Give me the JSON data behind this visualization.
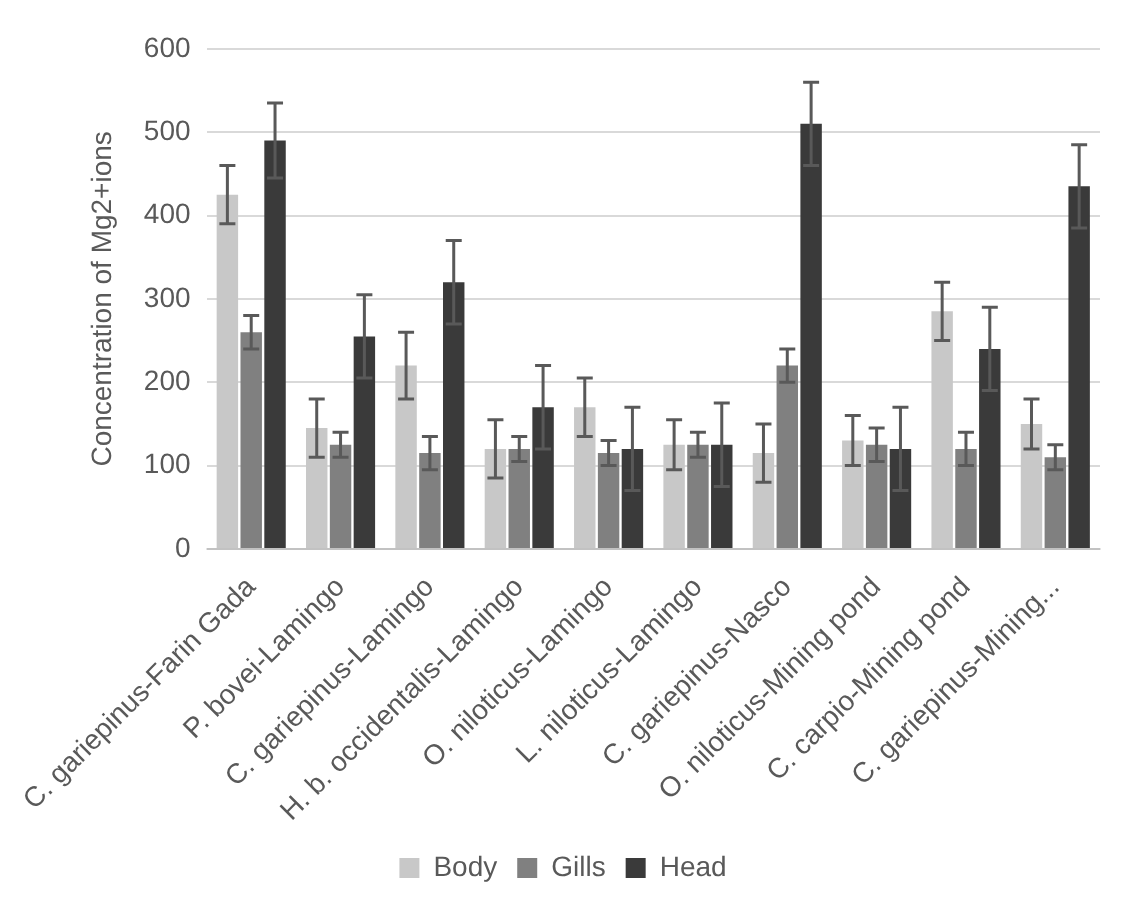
{
  "chart_data": {
    "type": "bar",
    "ylabel": "Concentration of Mg2+ions",
    "categories": [
      "C. gariepinus-Farin Gada",
      "P. bovei-Lamingo",
      "C. gariepinus-Lamingo",
      "H. b. occidentalis-Lamingo",
      "O. niloticus-Lamingo",
      "L. niloticus-Lamingo",
      "C. gariepinus-Nasco",
      "O. niloticus-Mining pond",
      "C. carpio-Mining pond",
      "C. gariepinus-Mining..."
    ],
    "series": [
      {
        "name": "Body",
        "color": "#c8c8c8",
        "values": [
          425,
          145,
          220,
          120,
          170,
          125,
          115,
          130,
          285,
          150
        ],
        "errors": [
          35,
          35,
          40,
          35,
          35,
          30,
          35,
          30,
          35,
          30
        ]
      },
      {
        "name": "Gills",
        "color": "#808080",
        "values": [
          260,
          125,
          115,
          120,
          115,
          125,
          220,
          125,
          120,
          110
        ],
        "errors": [
          20,
          15,
          20,
          15,
          15,
          15,
          20,
          20,
          20,
          15
        ]
      },
      {
        "name": "Head",
        "color": "#3a3a3a",
        "values": [
          490,
          255,
          320,
          170,
          120,
          125,
          510,
          120,
          240,
          435
        ],
        "errors": [
          45,
          50,
          50,
          50,
          50,
          50,
          50,
          50,
          50,
          50
        ]
      }
    ],
    "ylim": [
      0,
      600
    ],
    "yticks": [
      0,
      100,
      200,
      300,
      400,
      500,
      600
    ],
    "grid": "y",
    "legend": "bottom"
  }
}
